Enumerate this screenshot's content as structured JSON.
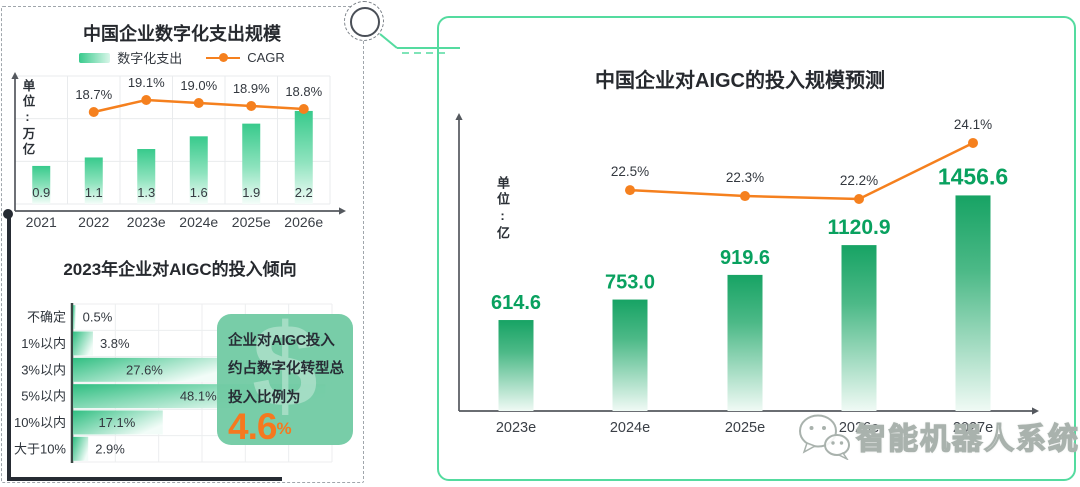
{
  "chart_data": [
    {
      "type": "bar",
      "title": "中国企业数字化支出规模",
      "unit_label": "单位:万亿",
      "categories": [
        "2021",
        "2022",
        "2023e",
        "2024e",
        "2025e",
        "2026e"
      ],
      "series": [
        {
          "name": "数字化支出",
          "type": "bar",
          "values": [
            0.9,
            1.1,
            1.3,
            1.6,
            1.9,
            2.2
          ],
          "labels": [
            "0.9",
            "1.1",
            "1.3",
            "1.6",
            "1.9",
            "2.2"
          ]
        },
        {
          "name": "CAGR",
          "type": "line",
          "values": [
            null,
            18.7,
            19.1,
            19.0,
            18.9,
            18.8
          ],
          "labels": [
            null,
            "18.7%",
            "19.1%",
            "19.0%",
            "18.9%",
            "18.8%"
          ]
        }
      ],
      "ylim": [
        0,
        3.2
      ],
      "grid": true,
      "legend_position": "top"
    },
    {
      "type": "hbar",
      "title": "2023年企业对AIGC的投入倾向",
      "categories": [
        "不确定",
        "1%以内",
        "3%以内",
        "5%以内",
        "10%以内",
        "大于10%"
      ],
      "values": [
        0.5,
        3.8,
        27.6,
        48.1,
        17.1,
        2.9
      ],
      "labels": [
        "0.5%",
        "3.8%",
        "27.6%",
        "48.1%",
        "17.1%",
        "2.9%"
      ],
      "xlim": [
        0,
        50
      ],
      "grid": true
    },
    {
      "type": "bar",
      "title": "中国企业对AIGC的投入规模预测",
      "unit_label": "单位:亿",
      "categories": [
        "2023e",
        "2024e",
        "2025e",
        "2026e",
        "2027e"
      ],
      "series": [
        {
          "type": "bar",
          "values": [
            614.6,
            753.0,
            919.6,
            1120.9,
            1456.6
          ],
          "labels": [
            "614.6",
            "753.0",
            "919.6",
            "1120.9",
            "1456.6"
          ]
        },
        {
          "type": "line",
          "values": [
            null,
            22.5,
            22.3,
            22.2,
            24.1
          ],
          "labels": [
            null,
            "22.5%",
            "22.3%",
            "22.2%",
            "24.1%"
          ]
        }
      ],
      "grid": false
    }
  ],
  "left_panel": {
    "callout": {
      "text_before_bold": "企业对",
      "bold_word": "AIGC",
      "text_after_bold": "投入约占数字化转型总投入比例为",
      "value": "4.6",
      "value_unit": "%",
      "watermark_glyph": "$"
    }
  },
  "watermark": {
    "text": "智能机器人系统"
  },
  "colors": {
    "bar_green_left": "#38CA8C",
    "bar_green_right": "#17A364",
    "hbar_green": "#2FBE81",
    "line_orange": "#F5801E",
    "value_green": "#09A15F",
    "panel_border_green": "#54DB9F",
    "callout_orange": "#F5791F",
    "axis_dark": "#54585E"
  }
}
